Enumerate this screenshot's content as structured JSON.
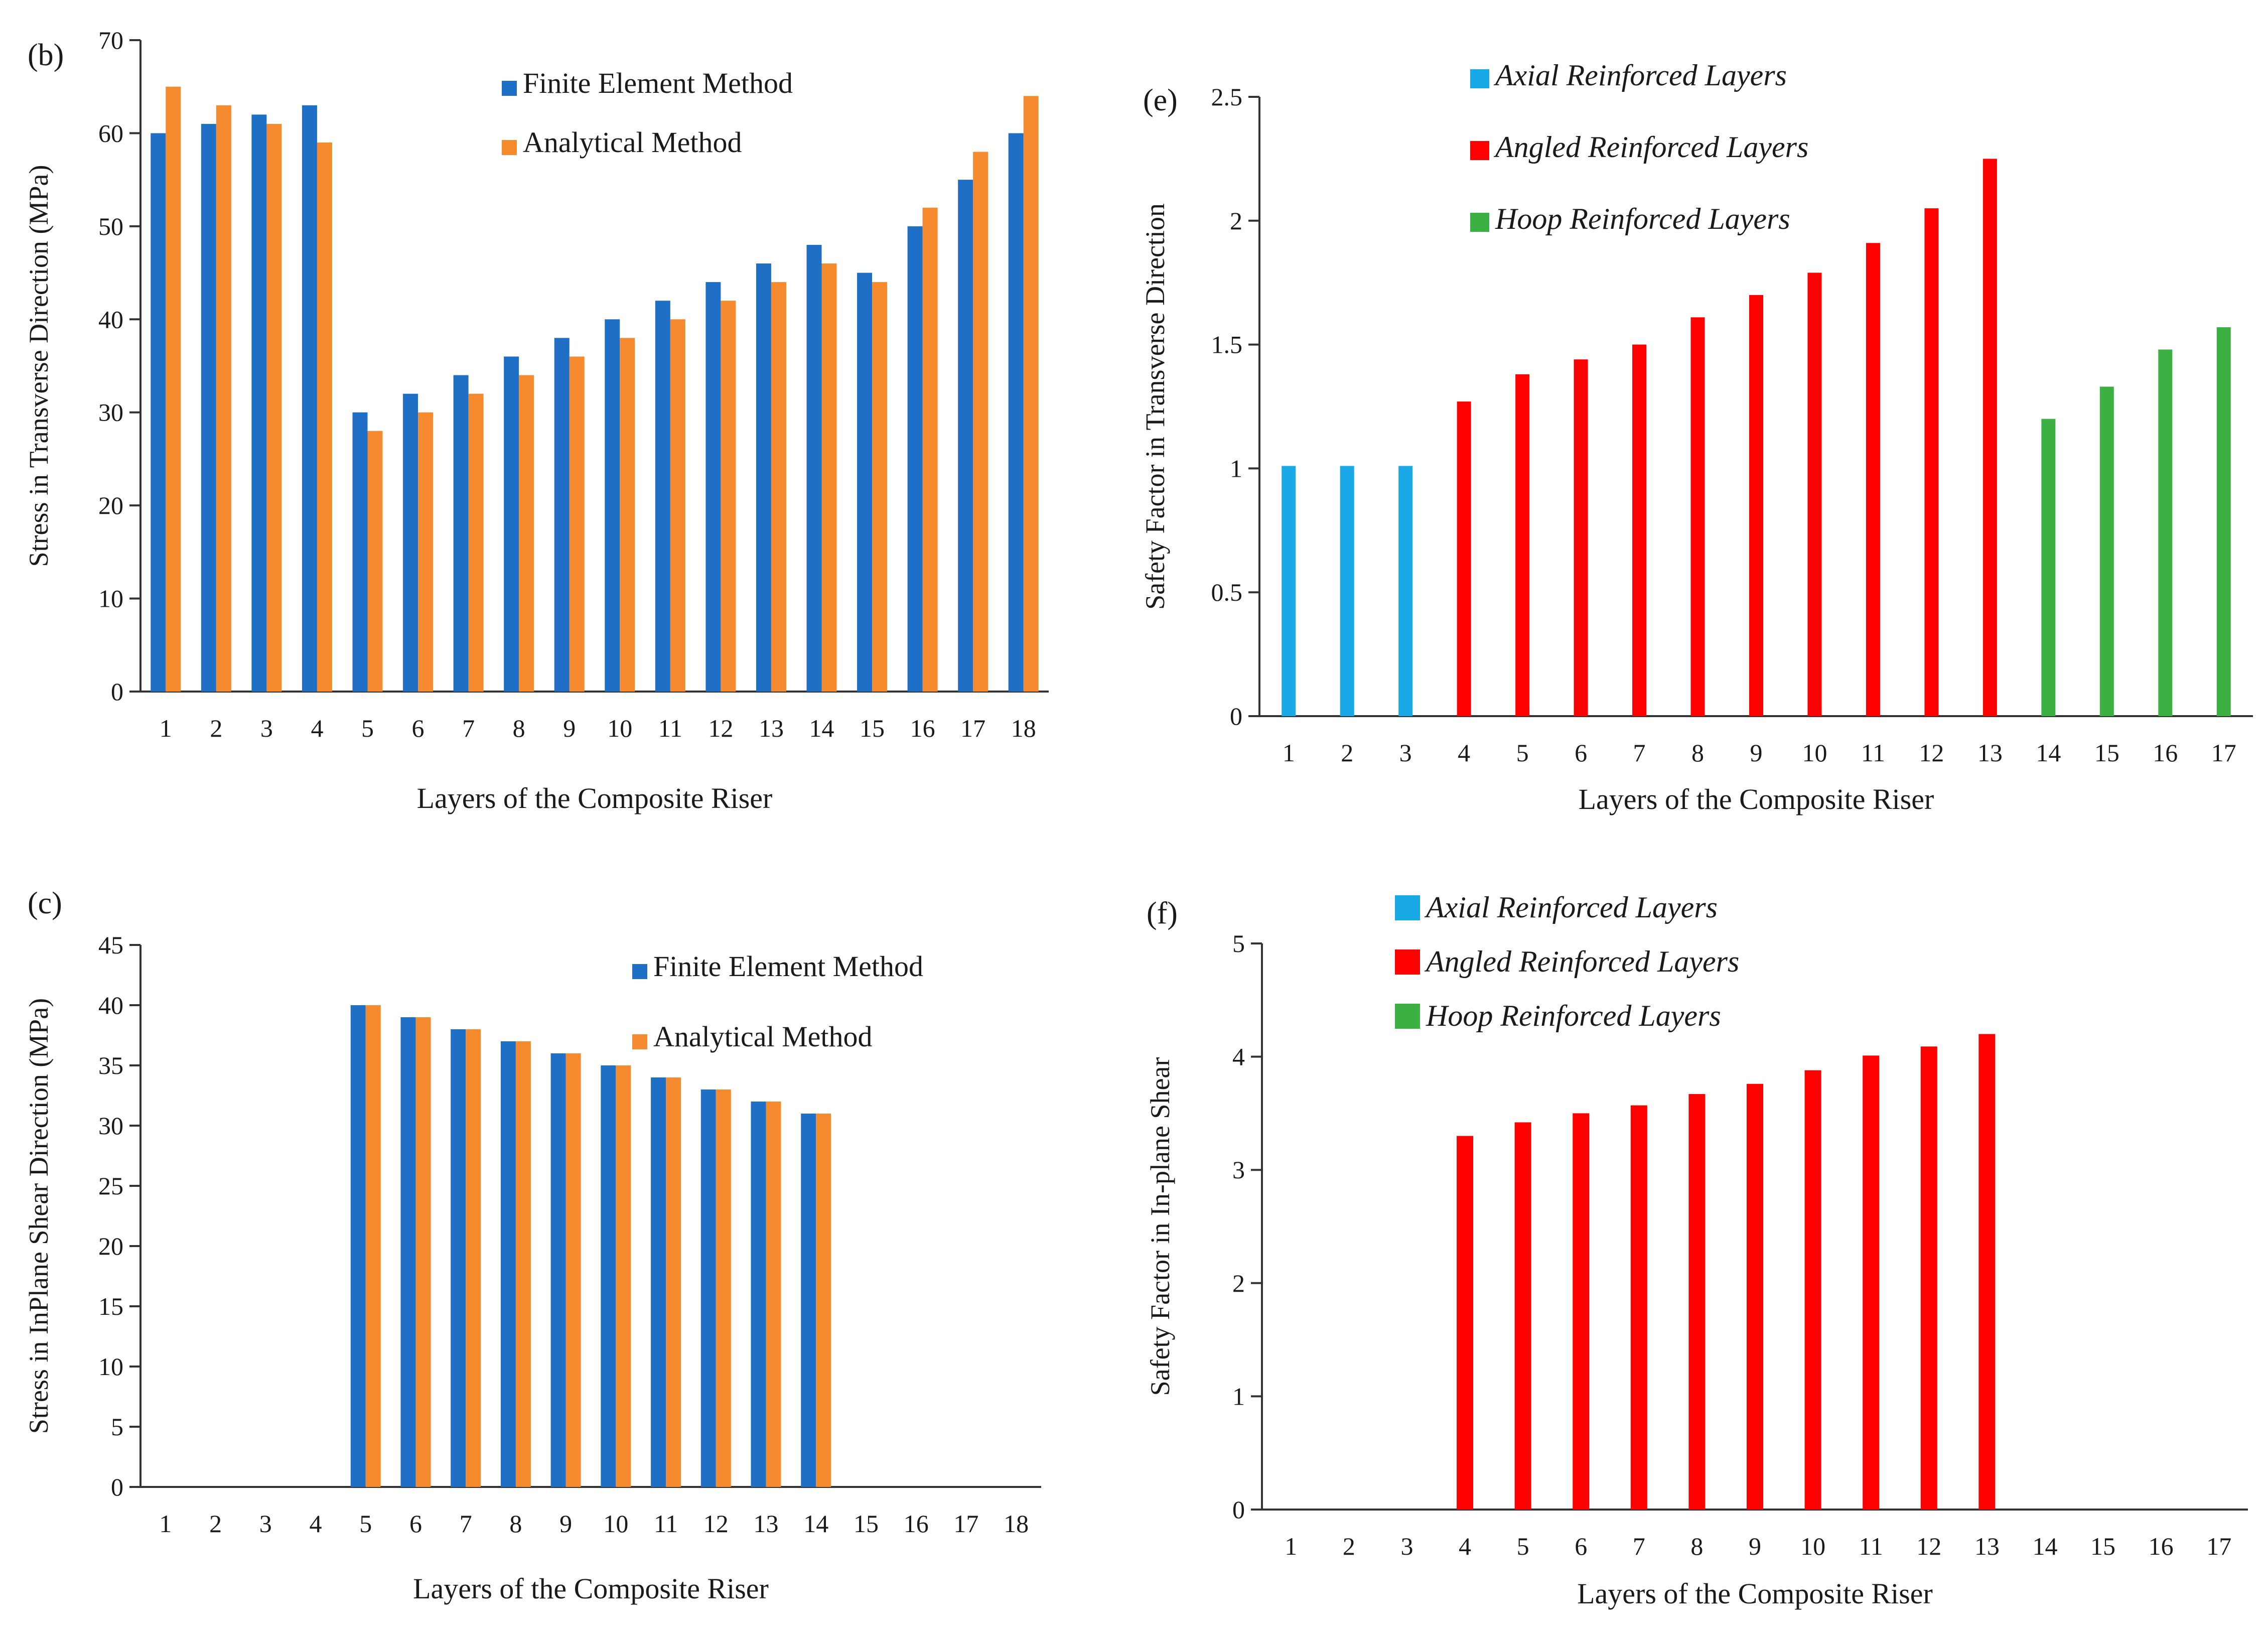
{
  "figure_panels": [
    "(b)",
    "(c)",
    "(e)",
    "(f)"
  ],
  "chart_data": [
    {
      "id": "b",
      "type": "bar",
      "panel_label": "(b)",
      "xlabel": "Layers of the Composite Riser",
      "ylabel": "Stress in Transverse Direction (MPa)",
      "ylim": [
        0,
        70
      ],
      "yticks": [
        "0",
        "10",
        "20",
        "30",
        "40",
        "50",
        "60",
        "70"
      ],
      "categories": [
        "1",
        "2",
        "3",
        "4",
        "5",
        "6",
        "7",
        "8",
        "9",
        "10",
        "11",
        "12",
        "13",
        "14",
        "15",
        "16",
        "17",
        "18"
      ],
      "legend": "top-center",
      "series": [
        {
          "name": "Finite Element Method",
          "color": "#1f6fc6",
          "values": [
            60,
            61,
            62,
            63,
            30,
            32,
            34,
            36,
            38,
            40,
            42,
            44,
            46,
            48,
            45,
            50,
            55,
            60
          ]
        },
        {
          "name": "Analytical Method",
          "color": "#f58a2e",
          "values": [
            65,
            63,
            61,
            59,
            28,
            30,
            32,
            34,
            36,
            38,
            40,
            42,
            44,
            46,
            44,
            52,
            58,
            64
          ]
        }
      ]
    },
    {
      "id": "c",
      "type": "bar",
      "panel_label": "(c)",
      "xlabel": "Layers of the Composite Riser",
      "ylabel": "Stress in InPlane Shear Direction (MPa)",
      "ylim": [
        0,
        45
      ],
      "yticks": [
        "0",
        "5",
        "10",
        "15",
        "20",
        "25",
        "30",
        "35",
        "40",
        "45"
      ],
      "categories": [
        "1",
        "2",
        "3",
        "4",
        "5",
        "6",
        "7",
        "8",
        "9",
        "10",
        "11",
        "12",
        "13",
        "14",
        "15",
        "16",
        "17",
        "18"
      ],
      "legend": "top-right",
      "series": [
        {
          "name": "Finite Element Method",
          "color": "#1f6fc6",
          "values": [
            0,
            0,
            0,
            0,
            40,
            39,
            38,
            37,
            36,
            35,
            34,
            33,
            32,
            31,
            0,
            0,
            0,
            0
          ]
        },
        {
          "name": "Analytical Method",
          "color": "#f58a2e",
          "values": [
            0,
            0,
            0,
            0,
            40,
            39,
            38,
            37,
            36,
            35,
            34,
            33,
            32,
            31,
            0,
            0,
            0,
            0
          ]
        }
      ]
    },
    {
      "id": "e",
      "type": "bar",
      "panel_label": "(e)",
      "xlabel": "Layers of the Composite Riser",
      "ylabel": "Safety Factor in Transverse Direction",
      "ylim": [
        0,
        2.5
      ],
      "yticks": [
        "0",
        "0.5",
        "1",
        "1.5",
        "2",
        "2.5"
      ],
      "categories": [
        "1",
        "2",
        "3",
        "4",
        "5",
        "6",
        "7",
        "8",
        "9",
        "10",
        "11",
        "12",
        "13",
        "14",
        "15",
        "16",
        "17"
      ],
      "legend": "top-left",
      "series": [
        {
          "name": "Axial Reinforced Layers",
          "color": "#19a9e6",
          "values": [
            1.01,
            1.01,
            1.01,
            0,
            0,
            0,
            0,
            0,
            0,
            0,
            0,
            0,
            0,
            0,
            0,
            0,
            0
          ]
        },
        {
          "name": "Angled Reinforced Layers",
          "color": "#ff0000",
          "values": [
            0,
            0,
            0,
            1.27,
            1.38,
            1.44,
            1.5,
            1.61,
            1.7,
            1.79,
            1.91,
            2.05,
            2.25,
            0,
            0,
            0,
            0
          ]
        },
        {
          "name": "Hoop Reinforced Layers",
          "color": "#3cb043",
          "values": [
            0,
            0,
            0,
            0,
            0,
            0,
            0,
            0,
            0,
            0,
            0,
            0,
            0,
            1.2,
            1.33,
            1.48,
            1.57
          ]
        }
      ]
    },
    {
      "id": "f",
      "type": "bar",
      "panel_label": "(f)",
      "xlabel": "Layers of the Composite Riser",
      "ylabel": "Safety Factor in In-plane Shear",
      "ylim": [
        0,
        5
      ],
      "yticks": [
        "0",
        "1",
        "2",
        "3",
        "4",
        "5"
      ],
      "categories": [
        "1",
        "2",
        "3",
        "4",
        "5",
        "6",
        "7",
        "8",
        "9",
        "10",
        "11",
        "12",
        "13",
        "14",
        "15",
        "16",
        "17"
      ],
      "legend": "top-left",
      "series": [
        {
          "name": "Axial Reinforced Layers",
          "color": "#19a9e6",
          "values": [
            0,
            0,
            0,
            0,
            0,
            0,
            0,
            0,
            0,
            0,
            0,
            0,
            0,
            0,
            0,
            0,
            0
          ]
        },
        {
          "name": "Angled Reinforced Layers",
          "color": "#ff0000",
          "values": [
            0,
            0,
            0,
            3.3,
            3.42,
            3.5,
            3.57,
            3.67,
            3.76,
            3.88,
            4.01,
            4.09,
            4.2,
            0,
            0,
            0,
            0
          ]
        },
        {
          "name": "Hoop Reinforced Layers",
          "color": "#3cb043",
          "values": [
            0,
            0,
            0,
            0,
            0,
            0,
            0,
            0,
            0,
            0,
            0,
            0,
            0,
            0,
            0,
            0,
            0
          ]
        }
      ]
    }
  ]
}
